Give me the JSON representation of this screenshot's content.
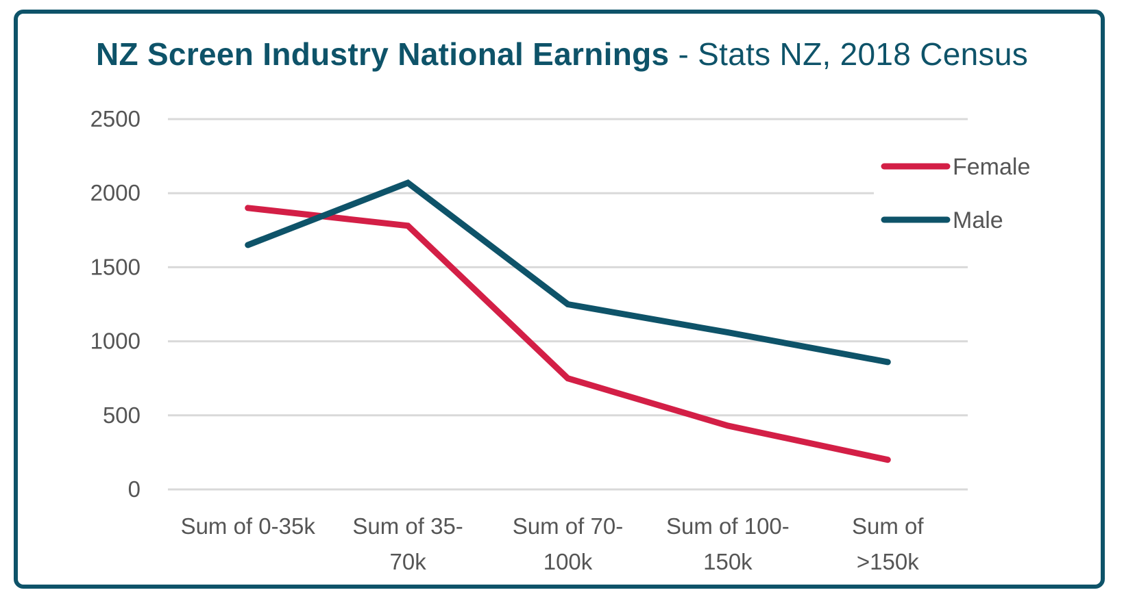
{
  "chart_data": {
    "type": "line",
    "title": "NZ Screen Industry National Earnings",
    "subtitle": "Stats NZ, 2018 Census",
    "title_separator": " - ",
    "categories": [
      [
        "Sum of 0-35k"
      ],
      [
        "Sum of 35-",
        "70k"
      ],
      [
        "Sum of 70-",
        "100k"
      ],
      [
        "Sum of 100-",
        "150k"
      ],
      [
        "Sum of",
        ">150k"
      ]
    ],
    "series": [
      {
        "name": "Female",
        "color": "#d31f46",
        "values": [
          1900,
          1780,
          750,
          430,
          200
        ]
      },
      {
        "name": "Male",
        "color": "#0e5369",
        "values": [
          1650,
          2070,
          1250,
          1060,
          860
        ]
      }
    ],
    "ylim": [
      0,
      2500
    ],
    "yticks": [
      "0",
      "500",
      "1000",
      "1500",
      "2000",
      "2500"
    ],
    "grid": true,
    "legend_position": "right"
  }
}
